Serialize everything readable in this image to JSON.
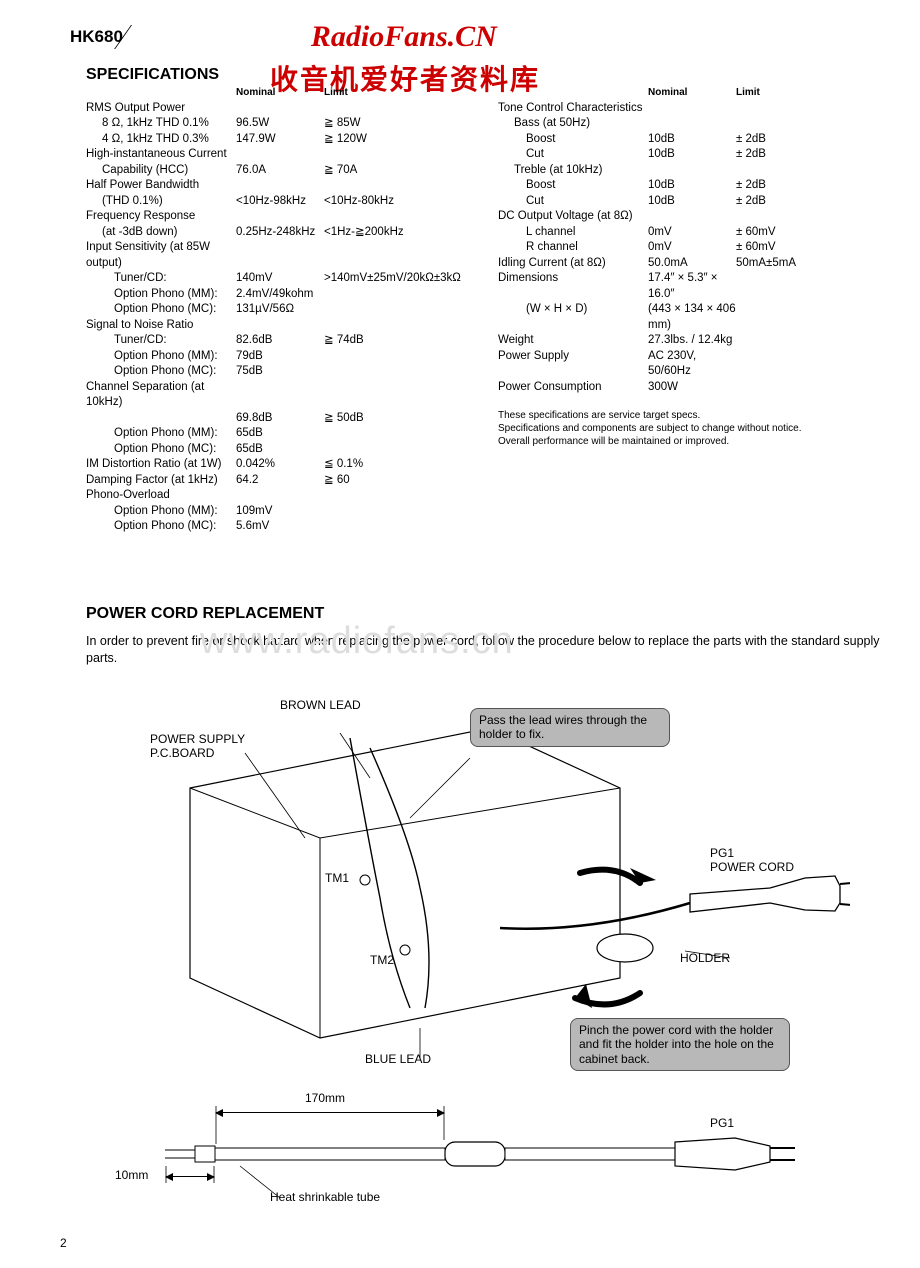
{
  "header": {
    "model": "HK680",
    "brand_top": "RadioFans.CN",
    "brand_sub": "收音机爱好者资料库"
  },
  "spec_title": "SPECIFICATIONS",
  "col_headers": {
    "nominal": "Nominal",
    "limit": "Limit"
  },
  "left_specs": [
    {
      "label": "RMS Output Power",
      "indent": 0
    },
    {
      "label": "8 Ω, 1kHz THD 0.1%",
      "nom": "96.5W",
      "lim": "≧ 85W",
      "indent": 1
    },
    {
      "label": "4 Ω, 1kHz THD 0.3%",
      "nom": "147.9W",
      "lim": "≧ 120W",
      "indent": 1
    },
    {
      "label": "High-instantaneous Current",
      "indent": 0
    },
    {
      "label": "Capability (HCC)",
      "nom": "76.0A",
      "lim": "≧ 70A",
      "indent": 1
    },
    {
      "label": "Half Power Bandwidth",
      "indent": 0
    },
    {
      "label": "(THD 0.1%)",
      "nom": "<10Hz-98kHz",
      "lim": "<10Hz-80kHz",
      "indent": 1
    },
    {
      "label": "Frequency Response",
      "indent": 0
    },
    {
      "label": "(at -3dB down)",
      "nom": "0.25Hz-248kHz",
      "lim": "<1Hz-≧200kHz",
      "indent": 1
    },
    {
      "label": "Input Sensitivity (at 85W output)",
      "indent": 0
    },
    {
      "label": "Tuner/CD:",
      "nom": "140mV",
      "lim": ">140mV±25mV/20kΩ±3kΩ",
      "indent": 2
    },
    {
      "label": "Option Phono (MM):",
      "nom": "2.4mV/49kohm",
      "indent": 2
    },
    {
      "label": "Option Phono (MC):",
      "nom": "131µV/56Ω",
      "indent": 2
    },
    {
      "label": "Signal to Noise Ratio",
      "indent": 0
    },
    {
      "label": "Tuner/CD:",
      "nom": "82.6dB",
      "lim": "≧ 74dB",
      "indent": 2
    },
    {
      "label": "Option Phono (MM):",
      "nom": "79dB",
      "indent": 2
    },
    {
      "label": "Option Phono (MC):",
      "nom": "75dB",
      "indent": 2
    },
    {
      "label": "Channel Separation (at 10kHz)",
      "indent": 0
    },
    {
      "label": "",
      "nom": "69.8dB",
      "lim": "≧ 50dB",
      "indent": 2
    },
    {
      "label": "Option Phono (MM):",
      "nom": "65dB",
      "indent": 2
    },
    {
      "label": "Option Phono (MC):",
      "nom": "65dB",
      "indent": 2
    },
    {
      "label": "IM Distortion Ratio (at 1W)",
      "nom": "0.042%",
      "lim": "≦ 0.1%",
      "indent": 0
    },
    {
      "label": "Damping Factor (at 1kHz)",
      "nom": "64.2",
      "lim": "≧ 60",
      "indent": 0
    },
    {
      "label": "Phono-Overload",
      "indent": 0
    },
    {
      "label": "Option Phono (MM):",
      "nom": "109mV",
      "indent": 2
    },
    {
      "label": "Option Phono (MC):",
      "nom": "5.6mV",
      "indent": 2
    }
  ],
  "right_specs": [
    {
      "label": "Tone Control Characteristics",
      "indent": 0
    },
    {
      "label": "Bass (at 50Hz)",
      "indent": 1
    },
    {
      "label": "Boost",
      "nom": "10dB",
      "lim": "± 2dB",
      "indent": 2
    },
    {
      "label": "Cut",
      "nom": "10dB",
      "lim": "± 2dB",
      "indent": 2
    },
    {
      "label": "Treble (at 10kHz)",
      "indent": 1
    },
    {
      "label": "Boost",
      "nom": "10dB",
      "lim": "± 2dB",
      "indent": 2
    },
    {
      "label": "Cut",
      "nom": "10dB",
      "lim": "± 2dB",
      "indent": 2
    },
    {
      "label": "DC Output Voltage (at 8Ω)",
      "indent": 0
    },
    {
      "label": "L channel",
      "nom": "0mV",
      "lim": "± 60mV",
      "indent": 2
    },
    {
      "label": "R channel",
      "nom": "0mV",
      "lim": "± 60mV",
      "indent": 2
    },
    {
      "label": "Idling Current (at 8Ω)",
      "nom": "50.0mA",
      "lim": "50mA±5mA",
      "indent": 0
    },
    {
      "label": "Dimensions",
      "nom": "17.4″ × 5.3″ × 16.0″",
      "indent": 0
    },
    {
      "label": "(W × H × D)",
      "nom": "(443 × 134 × 406 mm)",
      "indent": 2
    },
    {
      "label": "Weight",
      "nom": "27.3lbs. / 12.4kg",
      "indent": 0
    },
    {
      "label": "Power Supply",
      "nom": "AC 230V, 50/60Hz",
      "indent": 0
    },
    {
      "label": "Power Consumption",
      "nom": "300W",
      "indent": 0
    }
  ],
  "notes": {
    "l1": "These specifications are service target specs.",
    "l2": "Specifications and components are subject to change without notice.",
    "l3": "Overall performance will be maintained or improved."
  },
  "pcr": {
    "title": "POWER CORD REPLACEMENT",
    "text": "In order to prevent fire or shock hazard when replacing the power cord, follow the procedure below to replace the parts with the standard supply parts."
  },
  "watermark": "www.radiofans.cn",
  "diagram": {
    "brown_lead": "BROWN LEAD",
    "power_supply_pcb": "POWER SUPPLY\nP.C.BOARD",
    "tm1": "TM1",
    "tm2": "TM2",
    "blue_lead": "BLUE LEAD",
    "pg1_cord": "PG1\nPOWER CORD",
    "holder": "HOLDER",
    "callout1": "Pass the lead wires through the holder to fix.",
    "callout2": "Pinch the power cord with the holder and fit the holder into the hole on the cabinet back."
  },
  "cable": {
    "len": "170mm",
    "strip": "10mm",
    "tube": "Heat shrinkable tube",
    "pg1": "PG1"
  },
  "page_number": "2"
}
